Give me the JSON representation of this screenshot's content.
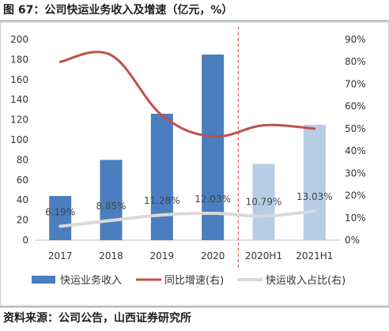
{
  "figure": {
    "title": "图 67：公司快运业务收入及增速（亿元，%）",
    "source": "资料来源：公司公告，山西证券研究所"
  },
  "chart_data": {
    "type": "bar",
    "categories": [
      "2017",
      "2018",
      "2019",
      "2020",
      "2020H1",
      "2021H1"
    ],
    "y_left": {
      "ylim": [
        0,
        200
      ],
      "ticks": [
        "0",
        "20",
        "40",
        "60",
        "80",
        "100",
        "120",
        "140",
        "160",
        "180",
        "200"
      ]
    },
    "y_right": {
      "ylim": [
        0,
        90
      ],
      "ticks": [
        "0%",
        "10%",
        "20%",
        "30%",
        "40%",
        "50%",
        "60%",
        "70%",
        "80%",
        "90%"
      ]
    },
    "series": [
      {
        "name": "快运业务收入",
        "type": "bar",
        "axis": "left",
        "values": [
          44,
          80,
          126,
          185,
          76,
          115
        ],
        "colors": [
          "#4a7ebf",
          "#4a7ebf",
          "#4a7ebf",
          "#4a7ebf",
          "#b7cde6",
          "#b7cde6"
        ]
      },
      {
        "name": "同比增速(右)",
        "type": "line",
        "axis": "right",
        "values": [
          80,
          83,
          56,
          46.5,
          51.5,
          50
        ],
        "color": "#c0504d"
      },
      {
        "name": "快运收入占比(右)",
        "type": "line",
        "axis": "right",
        "values": [
          6.19,
          8.85,
          11.28,
          12.03,
          10.79,
          13.03
        ],
        "labels": [
          "6.19%",
          "8.85%",
          "11.28%",
          "12.03%",
          "10.79%",
          "13.03%"
        ],
        "color": "#d9d9d9"
      }
    ],
    "divider": {
      "between": [
        "2020",
        "2020H1"
      ],
      "style": "dashed",
      "color": "#e04040"
    },
    "legend": {
      "position": "bottom"
    },
    "grid": false
  }
}
